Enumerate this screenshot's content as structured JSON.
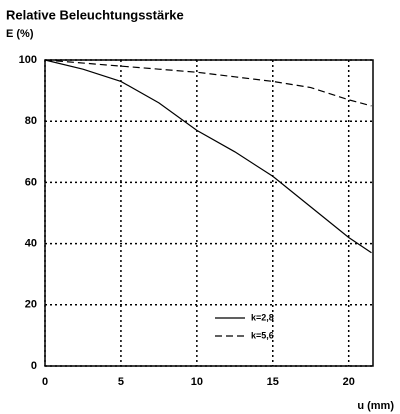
{
  "chart_data": {
    "type": "line",
    "title": "Relative Beleuchtungsstärke",
    "ylabel": "E (%)",
    "xlabel": "u (mm)",
    "x": [
      0,
      2.5,
      5,
      7.5,
      10,
      12.5,
      15,
      17.5,
      20,
      21.5
    ],
    "series": [
      {
        "name": "k=2,8",
        "color": "#000000",
        "style": "solid",
        "values": [
          100,
          97,
          93,
          86,
          77,
          70,
          62,
          52,
          42,
          37
        ]
      },
      {
        "name": "k=5,6",
        "color": "#000000",
        "style": "dashed",
        "values": [
          100,
          99,
          98,
          97,
          96,
          94.5,
          93,
          91,
          87,
          85
        ]
      }
    ],
    "xlim": [
      0,
      21.6
    ],
    "xticks": [
      0,
      5,
      10,
      15,
      20
    ],
    "ylim": [
      0,
      100
    ],
    "yticks": [
      0,
      20,
      40,
      60,
      80,
      100
    ],
    "grid": true,
    "legend": "lower right"
  }
}
